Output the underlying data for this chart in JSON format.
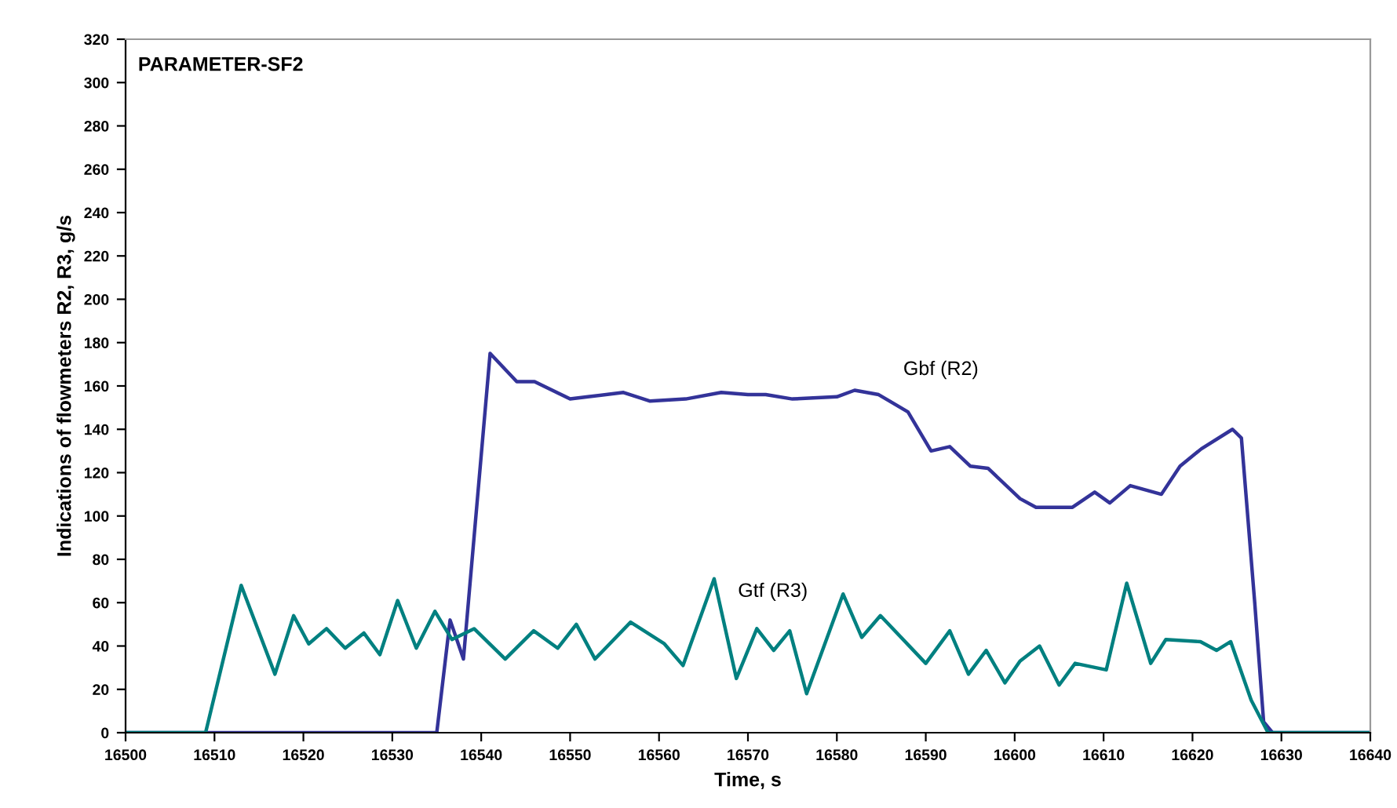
{
  "chart_data": {
    "type": "line",
    "title": "PARAMETER-SF2",
    "xlabel": "Time, s",
    "ylabel": "Indications of flowmeters R2, R3, g/s",
    "xlim": [
      16500,
      16640
    ],
    "xticks": [
      16500,
      16510,
      16520,
      16530,
      16540,
      16550,
      16560,
      16570,
      16580,
      16590,
      16600,
      16610,
      16620,
      16630,
      16640
    ],
    "ylim": [
      0,
      320
    ],
    "yticks": [
      0,
      20,
      40,
      60,
      80,
      100,
      120,
      140,
      160,
      180,
      200,
      220,
      240,
      260,
      280,
      300,
      320
    ],
    "grid": false,
    "legend": false,
    "marker": "none",
    "line_style": "solid",
    "series": [
      {
        "name": "Gbf (R2)",
        "color": "#333399",
        "x": [
          16500,
          16535,
          16536.5,
          16538,
          16541,
          16544,
          16546,
          16550,
          16552,
          16556,
          16559,
          16563,
          16567,
          16570,
          16572,
          16575,
          16580,
          16582,
          16584.7,
          16588,
          16590.6,
          16592.7,
          16595,
          16597,
          16600.6,
          16602.4,
          16606.5,
          16609,
          16610.7,
          16613,
          16616.5,
          16618.6,
          16621,
          16624.5,
          16625.5,
          16627,
          16628,
          16629,
          16640
        ],
        "values": [
          0,
          0,
          52,
          34,
          175,
          162,
          162,
          154,
          155,
          157,
          153,
          154,
          157,
          156,
          156,
          154,
          155,
          158,
          156,
          148,
          130,
          132,
          123,
          122,
          108,
          104,
          104,
          111,
          106,
          114,
          110,
          123,
          131,
          140,
          136,
          60,
          5,
          0,
          0
        ]
      },
      {
        "name": "Gtf (R3)",
        "color": "#008080",
        "x": [
          16500,
          16509,
          16513,
          16516.8,
          16518.9,
          16520.6,
          16522.6,
          16524.7,
          16526.8,
          16528.6,
          16530.6,
          16532.7,
          16534.8,
          16536.7,
          16539.2,
          16542.7,
          16545.9,
          16548.6,
          16550.7,
          16552.8,
          16556.8,
          16560.6,
          16562.7,
          16566.2,
          16568.7,
          16571,
          16572.9,
          16574.7,
          16576.6,
          16580.7,
          16582.8,
          16584.9,
          16590,
          16592.7,
          16594.8,
          16596.8,
          16598.9,
          16600.6,
          16602.8,
          16605,
          16606.8,
          16610.3,
          16612.6,
          16615.3,
          16617,
          16620.9,
          16622.7,
          16624.3,
          16626.6,
          16628.5,
          16640
        ],
        "values": [
          0,
          0,
          68,
          27,
          54,
          41,
          48,
          39,
          46,
          36,
          61,
          39,
          56,
          43,
          48,
          34,
          47,
          39,
          50,
          34,
          51,
          41,
          31,
          71,
          25,
          48,
          38,
          47,
          18,
          64,
          44,
          54,
          32,
          47,
          27,
          38,
          23,
          33,
          40,
          22,
          32,
          29,
          69,
          32,
          43,
          42,
          38,
          42,
          15,
          0,
          0
        ]
      }
    ]
  }
}
